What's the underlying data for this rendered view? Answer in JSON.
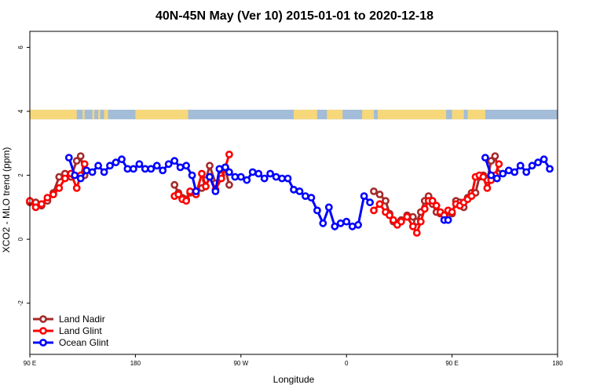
{
  "chart_data": {
    "type": "line",
    "title": "40N-45N May (Ver 10)   2015-01-01 to 2020-12-18",
    "xlabel": "Longitude",
    "ylabel": "XCO2 - MLO trend (ppm)",
    "xlim": [
      -90,
      180
    ],
    "ylim": [
      -3.6,
      6.5
    ],
    "x_ticks": [
      {
        "value": -90,
        "label": "90 E"
      },
      {
        "value": -36,
        "label": "180"
      },
      {
        "value": 18,
        "label": "90 W"
      },
      {
        "value": 72,
        "label": "0"
      },
      {
        "value": 126,
        "label": "90 E"
      },
      {
        "value": 180,
        "label": "180"
      }
    ],
    "y_ticks": [
      {
        "value": -2,
        "label": "-2"
      },
      {
        "value": 0,
        "label": "0"
      },
      {
        "value": 2,
        "label": "2"
      },
      {
        "value": 4,
        "label": "4"
      },
      {
        "value": 6,
        "label": "6"
      }
    ],
    "land_ocean_strip": {
      "y_range": [
        3.75,
        4.05
      ],
      "ocean_color": "#a3bcd8",
      "land_color": "#f6d87a",
      "land_spans": [
        [
          -90,
          -66
        ],
        [
          -63,
          -62
        ],
        [
          -58,
          -57
        ],
        [
          -55,
          -54
        ],
        [
          -52,
          -50
        ],
        [
          -36,
          -9
        ],
        [
          45,
          57
        ],
        [
          62,
          70
        ],
        [
          80,
          86
        ],
        [
          88,
          123
        ],
        [
          126,
          132
        ],
        [
          134,
          143
        ]
      ]
    },
    "legend": {
      "position": "bottom-left"
    },
    "series": [
      {
        "name": "Land Nadir",
        "color": "#a52a2a",
        "segments": [
          [
            [
              -90,
              1.15
            ],
            [
              -87,
              1.15
            ],
            [
              -84,
              1.05
            ],
            [
              -81,
              1.2
            ],
            [
              -78,
              1.45
            ],
            [
              -75,
              1.95
            ],
            [
              -72,
              2.05
            ],
            [
              -69,
              1.95
            ],
            [
              -66,
              2.45
            ],
            [
              -64,
              2.6
            ],
            [
              -62,
              2.0
            ]
          ],
          [
            [
              -16,
              1.7
            ],
            [
              -14,
              1.45
            ],
            [
              -12,
              1.3
            ],
            [
              -10,
              1.25
            ],
            [
              -8,
              1.45
            ],
            [
              -5,
              1.5
            ],
            [
              -2,
              1.6
            ],
            [
              0,
              1.85
            ],
            [
              2,
              2.3
            ],
            [
              5,
              1.75
            ],
            [
              8,
              2.0
            ],
            [
              10,
              2.2
            ],
            [
              12,
              1.7
            ]
          ],
          [
            [
              86,
              1.5
            ],
            [
              89,
              1.4
            ],
            [
              92,
              1.2
            ],
            [
              94,
              0.8
            ],
            [
              96,
              0.55
            ],
            [
              98,
              0.5
            ],
            [
              100,
              0.6
            ],
            [
              103,
              0.75
            ],
            [
              106,
              0.7
            ],
            [
              108,
              0.55
            ],
            [
              110,
              0.85
            ],
            [
              112,
              1.2
            ],
            [
              114,
              1.35
            ],
            [
              116,
              1.1
            ],
            [
              118,
              0.85
            ],
            [
              120,
              0.8
            ],
            [
              122,
              0.75
            ],
            [
              124,
              0.85
            ],
            [
              126,
              0.8
            ],
            [
              128,
              1.2
            ],
            [
              130,
              1.15
            ],
            [
              132,
              1.0
            ],
            [
              134,
              1.3
            ],
            [
              136,
              1.45
            ],
            [
              138,
              1.45
            ],
            [
              140,
              1.95
            ],
            [
              142,
              2.0
            ],
            [
              144,
              1.85
            ],
            [
              146,
              2.45
            ],
            [
              148,
              2.6
            ],
            [
              150,
              2.05
            ]
          ]
        ]
      },
      {
        "name": "Land Glint",
        "color": "#ff0000",
        "segments": [
          [
            [
              -90,
              1.2
            ],
            [
              -87,
              1.0
            ],
            [
              -84,
              1.1
            ],
            [
              -81,
              1.3
            ],
            [
              -78,
              1.4
            ],
            [
              -75,
              1.6
            ],
            [
              -72,
              1.9
            ],
            [
              -69,
              2.05
            ],
            [
              -66,
              1.6
            ],
            [
              -64,
              2.0
            ],
            [
              -62,
              2.35
            ]
          ],
          [
            [
              -16,
              1.35
            ],
            [
              -14,
              1.4
            ],
            [
              -12,
              1.25
            ],
            [
              -10,
              1.2
            ],
            [
              -8,
              1.5
            ],
            [
              -5,
              1.4
            ],
            [
              -2,
              2.05
            ],
            [
              0,
              1.65
            ],
            [
              2,
              1.95
            ],
            [
              5,
              1.55
            ],
            [
              8,
              1.9
            ],
            [
              10,
              2.25
            ],
            [
              12,
              2.65
            ]
          ],
          [
            [
              86,
              0.9
            ],
            [
              89,
              1.1
            ],
            [
              92,
              0.85
            ],
            [
              94,
              0.75
            ],
            [
              96,
              0.6
            ],
            [
              98,
              0.45
            ],
            [
              100,
              0.55
            ],
            [
              103,
              0.7
            ],
            [
              106,
              0.4
            ],
            [
              108,
              0.2
            ],
            [
              110,
              0.55
            ],
            [
              112,
              0.95
            ],
            [
              114,
              1.2
            ],
            [
              116,
              1.2
            ],
            [
              118,
              1.05
            ],
            [
              120,
              0.85
            ],
            [
              122,
              0.75
            ],
            [
              124,
              0.9
            ],
            [
              126,
              0.85
            ],
            [
              128,
              1.1
            ],
            [
              130,
              1.05
            ],
            [
              132,
              1.15
            ],
            [
              134,
              1.25
            ],
            [
              136,
              1.35
            ],
            [
              138,
              1.95
            ],
            [
              140,
              2.0
            ],
            [
              142,
              1.95
            ],
            [
              144,
              1.6
            ],
            [
              146,
              1.85
            ],
            [
              148,
              2.0
            ],
            [
              150,
              2.35
            ]
          ]
        ]
      },
      {
        "name": "Ocean Glint",
        "color": "#0000ff",
        "segments": [
          [
            [
              -70,
              2.55
            ],
            [
              -67,
              2.0
            ],
            [
              -64,
              1.9
            ],
            [
              -61,
              2.15
            ],
            [
              -58,
              2.1
            ],
            [
              -55,
              2.3
            ],
            [
              -52,
              2.1
            ],
            [
              -49,
              2.3
            ],
            [
              -46,
              2.4
            ],
            [
              -43,
              2.5
            ],
            [
              -40,
              2.2
            ],
            [
              -37,
              2.2
            ],
            [
              -34,
              2.35
            ],
            [
              -31,
              2.2
            ],
            [
              -28,
              2.2
            ],
            [
              -25,
              2.3
            ],
            [
              -22,
              2.15
            ],
            [
              -19,
              2.35
            ],
            [
              -16,
              2.45
            ],
            [
              -13,
              2.25
            ],
            [
              -10,
              2.3
            ],
            [
              -7,
              2.0
            ],
            [
              -5,
              1.5
            ]
          ],
          [
            [
              2,
              1.95
            ],
            [
              5,
              1.5
            ],
            [
              7,
              2.2
            ],
            [
              10,
              2.25
            ],
            [
              12,
              2.1
            ],
            [
              15,
              1.95
            ],
            [
              18,
              1.95
            ],
            [
              21,
              1.85
            ],
            [
              24,
              2.1
            ],
            [
              27,
              2.05
            ],
            [
              30,
              1.9
            ],
            [
              33,
              2.05
            ],
            [
              36,
              1.95
            ],
            [
              39,
              1.9
            ],
            [
              42,
              1.9
            ],
            [
              45,
              1.55
            ],
            [
              48,
              1.5
            ],
            [
              51,
              1.35
            ],
            [
              54,
              1.3
            ],
            [
              57,
              0.9
            ],
            [
              60,
              0.5
            ],
            [
              63,
              1.0
            ],
            [
              66,
              0.4
            ],
            [
              69,
              0.5
            ],
            [
              72,
              0.55
            ],
            [
              75,
              0.4
            ],
            [
              78,
              0.45
            ],
            [
              81,
              1.35
            ],
            [
              84,
              1.15
            ]
          ],
          [
            [
              122,
              0.6
            ],
            [
              124,
              0.6
            ]
          ],
          [
            [
              143,
              2.55
            ],
            [
              146,
              2.0
            ],
            [
              149,
              1.9
            ],
            [
              152,
              2.05
            ],
            [
              155,
              2.15
            ],
            [
              158,
              2.1
            ],
            [
              161,
              2.3
            ],
            [
              164,
              2.1
            ],
            [
              167,
              2.3
            ],
            [
              170,
              2.4
            ],
            [
              173,
              2.5
            ],
            [
              176,
              2.2
            ]
          ]
        ]
      }
    ]
  }
}
